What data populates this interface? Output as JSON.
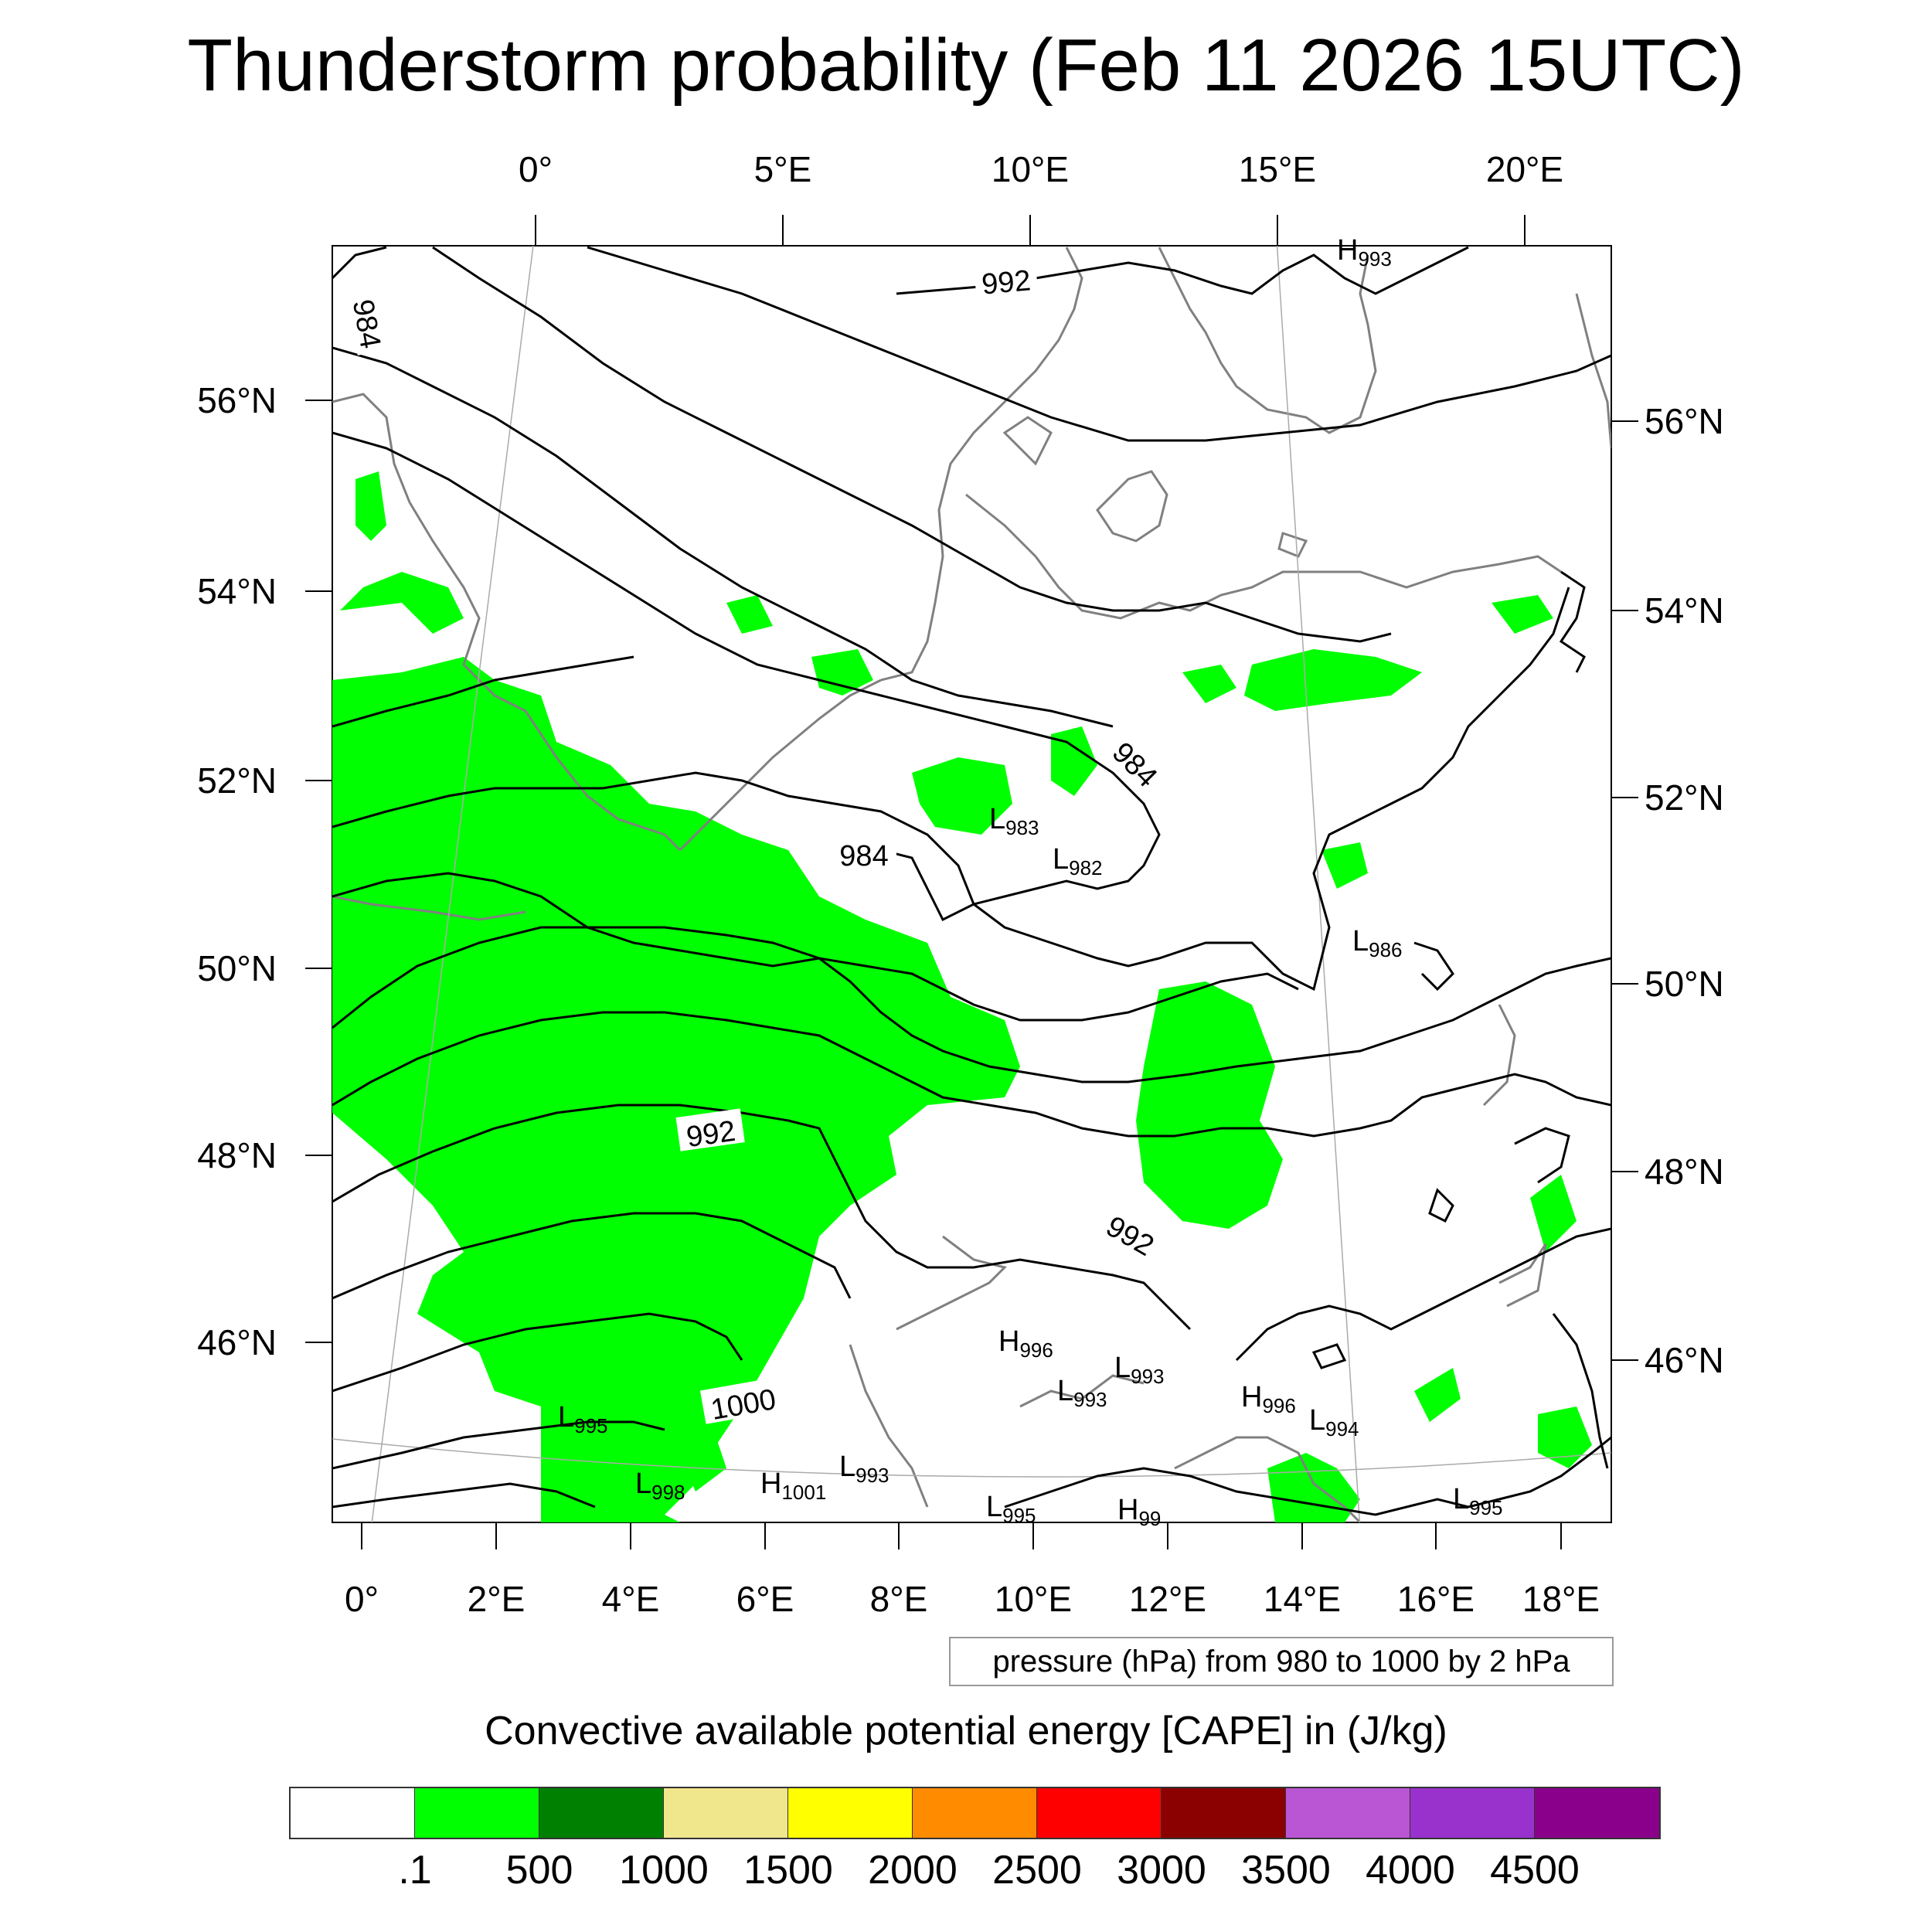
{
  "title": "Thunderstorm probability (Feb 11 2026 15UTC)",
  "top_axis_labels": [
    "0°",
    "5°E",
    "10°E",
    "15°E",
    "20°E"
  ],
  "bottom_axis_labels": [
    "0°",
    "2°E",
    "4°E",
    "6°E",
    "8°E",
    "10°E",
    "12°E",
    "14°E",
    "16°E",
    "18°E"
  ],
  "left_axis_labels": [
    "56°N",
    "54°N",
    "52°N",
    "50°N",
    "48°N",
    "46°N"
  ],
  "right_axis_labels": [
    "56°N",
    "54°N",
    "52°N",
    "50°N",
    "48°N",
    "46°N"
  ],
  "contour_labels": {
    "c984a": "984",
    "c992top": "992",
    "c984ne": "984",
    "c984mid": "984",
    "c992mid": "992",
    "c992se": "992",
    "c1000": "1000"
  },
  "pressure_centers": [
    {
      "type": "H",
      "value": "993"
    },
    {
      "type": "L",
      "value": "983"
    },
    {
      "type": "L",
      "value": "982"
    },
    {
      "type": "L",
      "value": "986"
    },
    {
      "type": "H",
      "value": "996"
    },
    {
      "type": "L",
      "value": "993"
    },
    {
      "type": "L",
      "value": "993"
    },
    {
      "type": "H",
      "value": "996"
    },
    {
      "type": "L",
      "value": "994"
    },
    {
      "type": "L",
      "value": "995"
    },
    {
      "type": "L",
      "value": "998"
    },
    {
      "type": "H",
      "value": "1001"
    },
    {
      "type": "L",
      "value": "993"
    },
    {
      "type": "L",
      "value": "995"
    },
    {
      "type": "H",
      "value": "99"
    },
    {
      "type": "L",
      "value": "995"
    }
  ],
  "contour_info": "pressure (hPa) from 980 to 1000 by 2 hPa",
  "colorbar": {
    "title": "Convective available potential energy [CAPE] in (J/kg)",
    "colors": [
      "#ffffff",
      "#00ff00",
      "#008000",
      "#f0e68c",
      "#ffff00",
      "#ff8c00",
      "#ff0000",
      "#8b0000",
      "#ba55d3",
      "#9932cc",
      "#8b008b"
    ],
    "labels": [
      ".1",
      "500",
      "1000",
      "1500",
      "2000",
      "2500",
      "3000",
      "3500",
      "4000",
      "4500"
    ]
  }
}
